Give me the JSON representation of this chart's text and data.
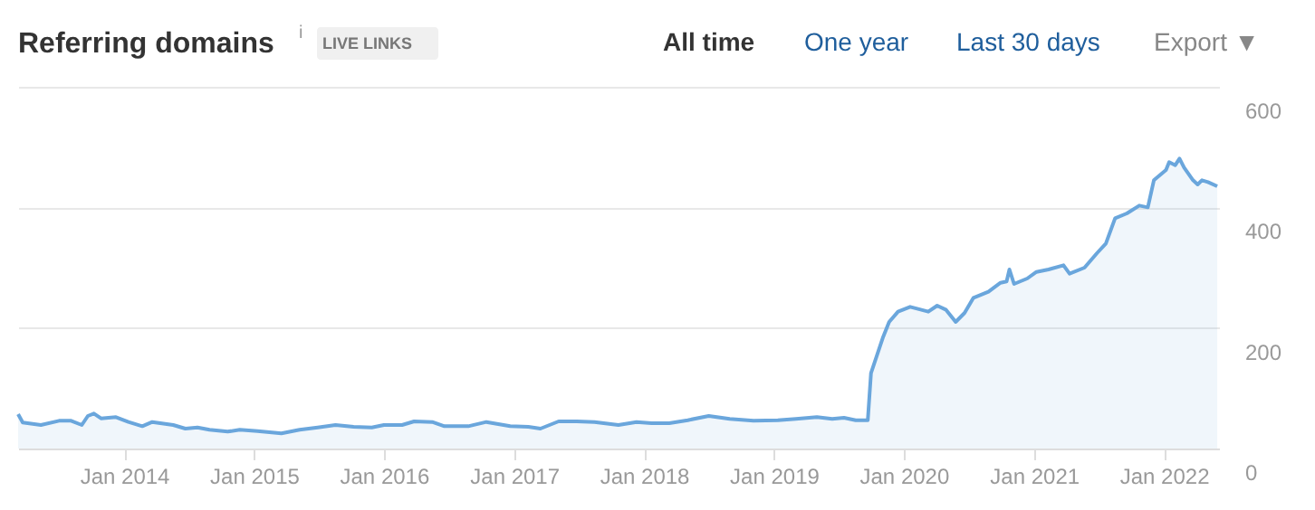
{
  "chart_data": {
    "type": "area",
    "title": "Referring domains",
    "annotations": [
      "i",
      "LIVE LINKS",
      "All time",
      "One year",
      "Last 30 days",
      "Export ▼"
    ],
    "x": [
      "2013-03-09",
      "2013-03-22",
      "2013-05-12",
      "2013-07-02",
      "2013-08-05",
      "2013-09-04",
      "2013-09-21",
      "2013-10-08",
      "2013-10-28",
      "2013-12-09",
      "2014-01-13",
      "2014-02-21",
      "2014-03-21",
      "2014-05-19",
      "2014-06-22",
      "2014-07-26",
      "2014-08-29",
      "2014-10-19",
      "2014-11-22",
      "2015-01-11",
      "2015-03-19",
      "2015-05-09",
      "2015-06-29",
      "2015-08-18",
      "2015-10-08",
      "2015-11-28",
      "2016-01-01",
      "2016-02-21",
      "2016-03-26",
      "2016-05-16",
      "2016-06-19",
      "2016-08-25",
      "2016-10-15",
      "2016-12-21",
      "2017-02-10",
      "2017-03-16",
      "2017-05-06",
      "2017-06-26",
      "2017-08-15",
      "2017-10-21",
      "2017-12-11",
      "2018-01-22",
      "2018-03-13",
      "2018-05-04",
      "2018-07-02",
      "2018-08-30",
      "2018-11-05",
      "2019-01-12",
      "2019-03-04",
      "2019-05-02",
      "2019-06-14",
      "2019-07-17",
      "2019-08-19",
      "2019-09-22",
      "2019-10-01",
      "2019-10-18",
      "2019-11-04",
      "2019-11-21",
      "2019-12-16",
      "2020-01-19",
      "2020-03-10",
      "2020-04-04",
      "2020-04-29",
      "2020-05-26",
      "2020-06-20",
      "2020-07-15",
      "2020-08-26",
      "2020-09-29",
      "2020-10-16",
      "2020-10-24",
      "2020-11-06",
      "2020-12-13",
      "2021-01-08",
      "2021-02-11",
      "2021-03-25",
      "2021-04-11",
      "2021-05-23",
      "2021-06-27",
      "2021-07-22",
      "2021-08-17",
      "2021-09-19",
      "2021-10-24",
      "2021-11-17",
      "2021-12-04",
      "2022-01-07",
      "2022-01-16",
      "2022-02-02",
      "2022-02-14",
      "2022-02-27",
      "2022-03-24",
      "2022-04-06",
      "2022-04-18",
      "2022-05-05",
      "2022-05-31"
    ],
    "series": [
      {
        "color": "#6aa6dc",
        "values": [
          57,
          43,
          39,
          46,
          46,
          39,
          54,
          58,
          50,
          52,
          44,
          37,
          44,
          39,
          33,
          35,
          31,
          28,
          31,
          29,
          25,
          31,
          35,
          39,
          36,
          35,
          39,
          39,
          45,
          44,
          37,
          37,
          44,
          37,
          36,
          33,
          45,
          45,
          44,
          39,
          44,
          42,
          42,
          47,
          54,
          49,
          46,
          47,
          49,
          52,
          49,
          51,
          47,
          47,
          125,
          155,
          185,
          210,
          227,
          235,
          227,
          237,
          230,
          210,
          225,
          250,
          260,
          275,
          277,
          297,
          273,
          282,
          293,
          297,
          304,
          290,
          300,
          324,
          340,
          382,
          390,
          403,
          400,
          445,
          462,
          475,
          470,
          481,
          466,
          445,
          438,
          445,
          442,
          435
        ]
      }
    ],
    "xlim": [
      "2013-03-09",
      "2022-06-05"
    ],
    "xticks": [
      {
        "value": "2014-01-01",
        "label": "Jan 2014"
      },
      {
        "value": "2015-01-01",
        "label": "Jan 2015"
      },
      {
        "value": "2016-01-01",
        "label": "Jan 2016"
      },
      {
        "value": "2017-01-01",
        "label": "Jan 2017"
      },
      {
        "value": "2018-01-01",
        "label": "Jan 2018"
      },
      {
        "value": "2019-01-01",
        "label": "Jan 2019"
      },
      {
        "value": "2020-01-01",
        "label": "Jan 2020"
      },
      {
        "value": "2021-01-01",
        "label": "Jan 2021"
      },
      {
        "value": "2022-01-01",
        "label": "Jan 2022"
      }
    ],
    "ylim": [
      0,
      600
    ],
    "yticks": [
      0,
      200,
      400,
      600
    ],
    "grid": "y",
    "legend": false
  }
}
